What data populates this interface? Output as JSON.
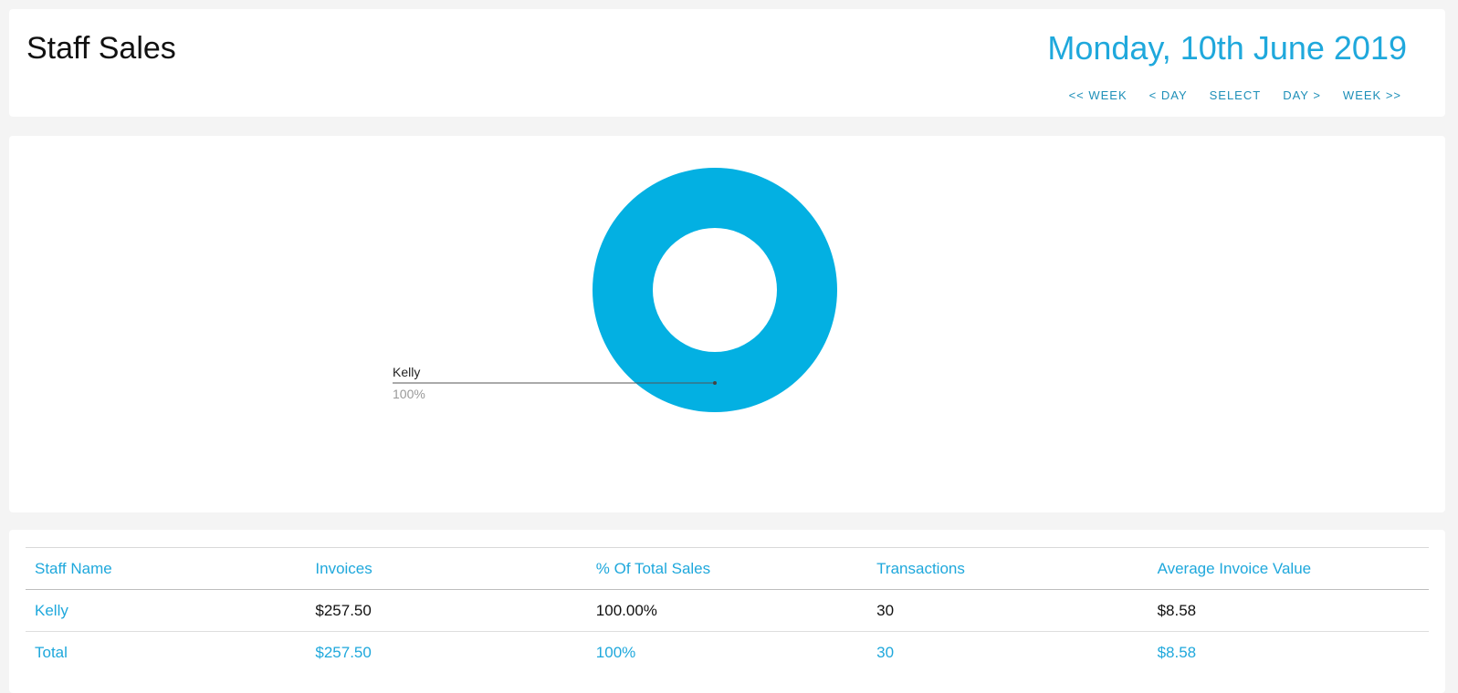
{
  "header": {
    "title": "Staff Sales",
    "date": "Monday, 10th June 2019",
    "nav": [
      {
        "label": "<< WEEK"
      },
      {
        "label": "< DAY"
      },
      {
        "label": "SELECT"
      },
      {
        "label": "DAY >"
      },
      {
        "label": "WEEK >>"
      }
    ]
  },
  "chart_data": {
    "type": "pie",
    "style": "donut",
    "categories": [
      "Kelly"
    ],
    "values": [
      100
    ],
    "labels": [
      {
        "name": "Kelly",
        "percent": "100%"
      }
    ],
    "colors": [
      "#03b0e2"
    ]
  },
  "table": {
    "columns": [
      "Staff Name",
      "Invoices",
      "% Of Total Sales",
      "Transactions",
      "Average Invoice Value"
    ],
    "rows": [
      [
        "Kelly",
        "$257.50",
        "100.00%",
        "30",
        "$8.58"
      ]
    ],
    "total": [
      "Total",
      "$257.50",
      "100%",
      "30",
      "$8.58"
    ]
  },
  "colors": {
    "accent": "#1fa8dc",
    "donut": "#03b0e2",
    "background": "#f4f4f4"
  }
}
